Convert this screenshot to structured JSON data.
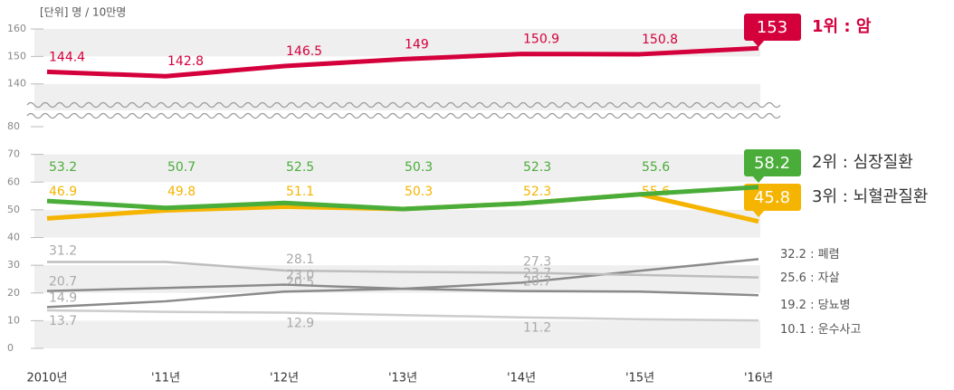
{
  "chart_data": {
    "type": "line",
    "unit_label": "[단위] 명 / 10만명",
    "categories": [
      "2010년",
      "'11년",
      "'12년",
      "'13년",
      "'14년",
      "'15년",
      "'16년"
    ],
    "separator": " : ",
    "ylim": [
      0,
      80
    ],
    "yticks": [
      0,
      10,
      20,
      30,
      40,
      50,
      60,
      70,
      80
    ],
    "y2lim": [
      133,
      160
    ],
    "y2ticks": [
      140,
      150,
      160
    ],
    "series": [
      {
        "name": "암",
        "rank": "1위",
        "color": "#d4003c",
        "axis": "y2",
        "values": [
          144.4,
          142.8,
          146.5,
          149,
          150.9,
          150.8,
          153
        ]
      },
      {
        "name": "심장질환",
        "rank": "2위",
        "color": "#4aad3a",
        "values": [
          53.2,
          50.7,
          52.5,
          50.3,
          52.3,
          55.6,
          58.2
        ]
      },
      {
        "name": "뇌혈관질환",
        "rank": "3위",
        "color": "#f5b400",
        "values": [
          46.9,
          49.8,
          51.1,
          50.3,
          52.3,
          55.6,
          45.8
        ]
      },
      {
        "name": "폐렴",
        "color": "#8a8a8a",
        "values": [
          14.9,
          17,
          20.5,
          21.5,
          23.7,
          28,
          32.2
        ],
        "value_labels": [
          "14.9",
          null,
          "20.5",
          null,
          "23.7",
          null,
          "32.2"
        ]
      },
      {
        "name": "자살",
        "color": "#bdbdbd",
        "values": [
          31.2,
          31.2,
          28.1,
          27.6,
          27.3,
          26.5,
          25.6
        ],
        "value_labels": [
          "31.2",
          null,
          "28.1",
          null,
          "27.3",
          null,
          "25.6"
        ]
      },
      {
        "name": "당뇨병",
        "color": "#8a8a8a",
        "values": [
          20.7,
          21.8,
          23.0,
          21.5,
          20.7,
          20.5,
          19.2
        ],
        "value_labels": [
          "20.7",
          null,
          "23.0",
          null,
          "20.7",
          null,
          "19.2"
        ]
      },
      {
        "name": "운수사고",
        "color": "#cccccc",
        "values": [
          13.7,
          13.2,
          12.9,
          12,
          11.2,
          10.5,
          10.1
        ],
        "value_labels": [
          "13.7",
          null,
          "12.9",
          null,
          "11.2",
          null,
          "10.1"
        ]
      }
    ]
  }
}
